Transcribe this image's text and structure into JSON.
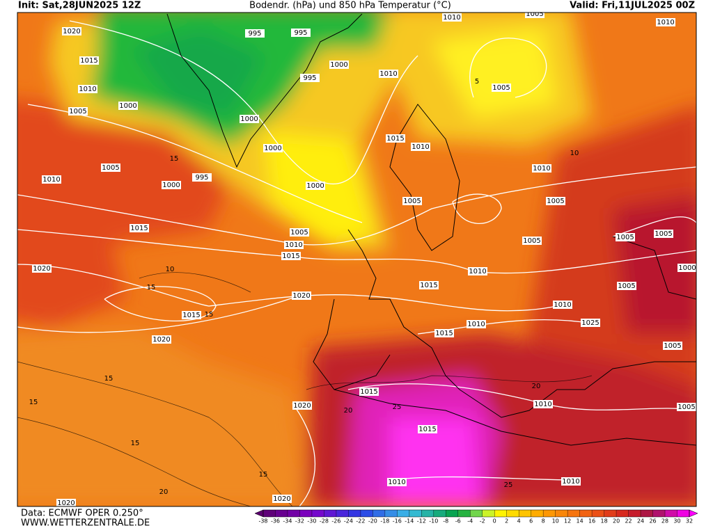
{
  "header": {
    "init": "Init: Sat,28JUN2025 12Z",
    "title": "Bodendr. (hPa) und 850 hPa Temperatur (°C)",
    "valid": "Valid: Fri,11JUL2025 00Z"
  },
  "map": {
    "isobar_labels": [
      1020,
      1015,
      1010,
      1005,
      1000,
      995,
      995,
      1010,
      1005,
      1010,
      995,
      1000,
      1010,
      1005,
      1000,
      1000,
      1000,
      1015,
      1010,
      1005,
      1010,
      1000,
      995,
      1010,
      1005,
      1005,
      1015,
      1005,
      1010,
      1015,
      1005,
      1005,
      1005,
      1020,
      1010,
      1000,
      1015,
      1005,
      1020,
      1015,
      1010,
      1025,
      1010,
      1015,
      1020,
      1005,
      1015,
      1020,
      1010,
      1005,
      1015,
      1010,
      1010,
      1020,
      1020
    ],
    "temperature_labels": [
      15,
      10,
      15,
      15,
      15,
      15,
      15,
      15,
      20,
      20,
      25,
      20,
      25,
      10,
      5
    ]
  },
  "colorbar": {
    "labels": [
      -38,
      -36,
      -34,
      -32,
      -30,
      -28,
      -26,
      -24,
      -22,
      -20,
      -18,
      -16,
      -14,
      -12,
      -10,
      -8,
      -6,
      -4,
      -2,
      0,
      2,
      4,
      6,
      8,
      10,
      12,
      14,
      16,
      18,
      20,
      22,
      24,
      26,
      28,
      30,
      32
    ]
  },
  "footer": {
    "data": "Data: ECMWF OPER 0.250°",
    "site": "WWW.WETTERZENTRALE.DE"
  }
}
